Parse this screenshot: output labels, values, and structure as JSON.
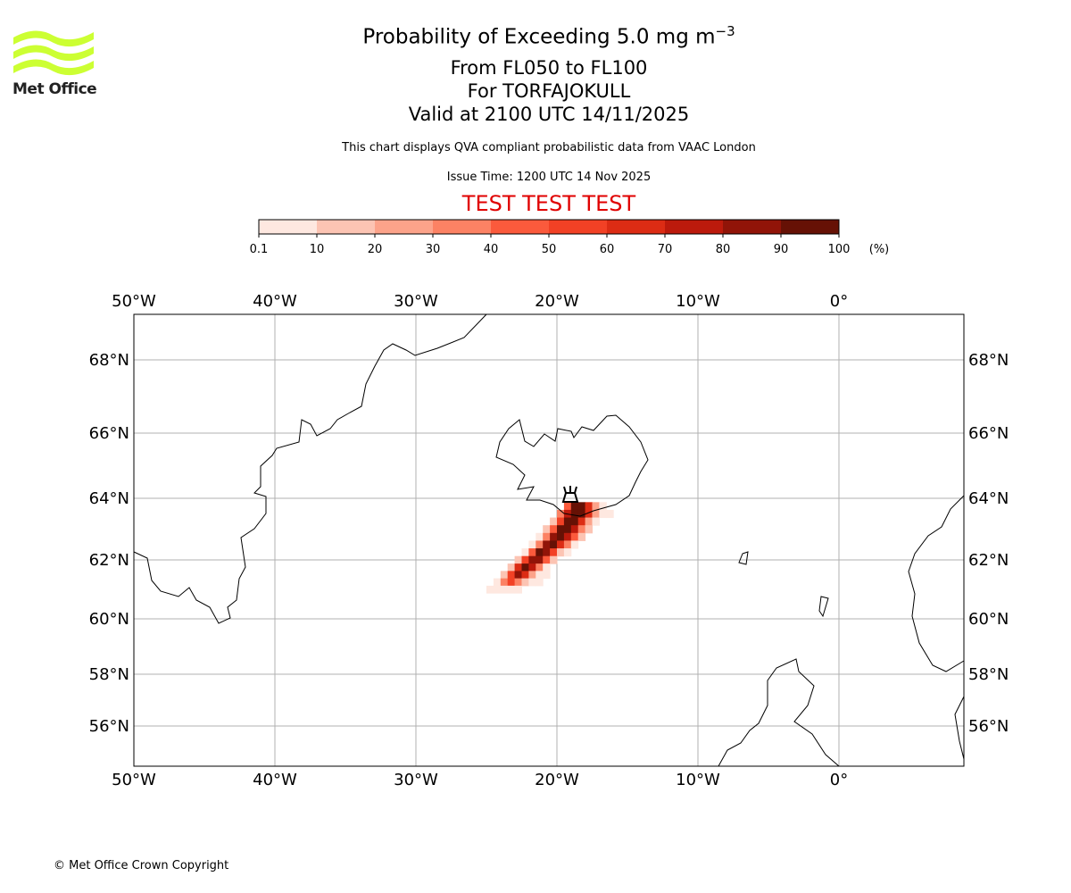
{
  "header": {
    "title": "Probability of Exceeding 5.0 mg m",
    "title_sup": "−3",
    "levels": "From FL050 to FL100",
    "location": "For TORFAJOKULL",
    "valid": "Valid at 2100 UTC 14/11/2025",
    "subtitle": "This chart displays QVA compliant probabilistic data from VAAC London",
    "issue": "Issue Time: 1200 UTC 14 Nov 2025",
    "test": "TEST TEST TEST"
  },
  "logo": {
    "text": "Met Office",
    "color": "#ccff33"
  },
  "footer": {
    "copyright": "© Met Office Crown Copyright"
  },
  "chart_data": {
    "type": "heatmap",
    "colorbar": {
      "ticks": [
        "0.1",
        "10",
        "20",
        "30",
        "40",
        "50",
        "60",
        "70",
        "80",
        "90",
        "100"
      ],
      "unit": "(%)",
      "colors": [
        "#fee8e0",
        "#fcc4b3",
        "#fca38a",
        "#fc8264",
        "#fb5a3c",
        "#f24125",
        "#dc2c14",
        "#bc1a0c",
        "#911408",
        "#661105"
      ]
    },
    "xlim": [
      -50,
      9
    ],
    "ylim": [
      54.8,
      69.3
    ],
    "xticks": [
      "50°W",
      "40°W",
      "30°W",
      "20°W",
      "10°W",
      "0°"
    ],
    "xtick_values": [
      -50,
      -40,
      -30,
      -20,
      -10,
      0
    ],
    "yticks": [
      "68°N",
      "66°N",
      "64°N",
      "62°N",
      "60°N",
      "58°N",
      "56°N"
    ],
    "ytick_values": [
      68,
      66,
      64,
      62,
      60,
      58,
      56
    ],
    "grid": true,
    "volcano": {
      "name": "TORFAJOKULL",
      "lon": -19.1,
      "lat": 63.9
    },
    "cell_size": [
      0.5,
      0.25
    ],
    "rows": [
      {
        "lat": 63.875,
        "lon0": -19.5,
        "p": [
          40,
          95,
          95,
          60,
          20,
          5
        ]
      },
      {
        "lat": 63.625,
        "lon0": -20.0,
        "p": [
          30,
          70,
          98,
          90,
          60,
          20,
          5,
          5
        ]
      },
      {
        "lat": 63.375,
        "lon0": -20.5,
        "p": [
          10,
          50,
          95,
          90,
          60,
          20,
          5
        ]
      },
      {
        "lat": 63.125,
        "lon0": -21.0,
        "p": [
          10,
          40,
          90,
          95,
          70,
          30,
          10
        ]
      },
      {
        "lat": 62.875,
        "lon0": -21.5,
        "p": [
          5,
          30,
          80,
          95,
          70,
          40,
          10
        ]
      },
      {
        "lat": 62.625,
        "lon0": -22.0,
        "p": [
          5,
          30,
          85,
          95,
          60,
          30,
          5
        ]
      },
      {
        "lat": 62.375,
        "lon0": -22.5,
        "p": [
          5,
          40,
          90,
          85,
          50,
          15,
          5
        ]
      },
      {
        "lat": 62.125,
        "lon0": -23.0,
        "p": [
          10,
          50,
          85,
          80,
          40,
          10
        ]
      },
      {
        "lat": 61.875,
        "lon0": -23.5,
        "p": [
          10,
          60,
          90,
          70,
          30,
          5
        ]
      },
      {
        "lat": 61.625,
        "lon0": -24.0,
        "p": [
          10,
          50,
          85,
          60,
          20,
          5,
          5
        ]
      },
      {
        "lat": 61.375,
        "lon0": -24.5,
        "p": [
          5,
          30,
          50,
          30,
          10,
          5,
          5
        ]
      },
      {
        "lat": 61.125,
        "lon0": -25.0,
        "p": [
          5,
          5,
          5,
          5,
          5
        ]
      }
    ]
  }
}
